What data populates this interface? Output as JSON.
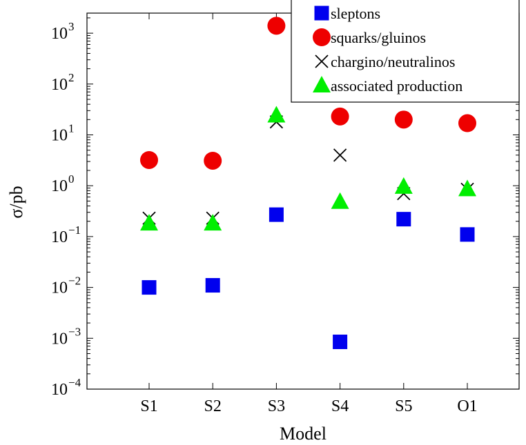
{
  "chart_data": {
    "type": "scatter",
    "title": "",
    "xlabel": "Model",
    "ylabel": "σ/pb",
    "yscale": "log",
    "ylim": [
      0.0001,
      2000
    ],
    "grid": false,
    "legend_position": "top-right",
    "categories": [
      "S1",
      "S2",
      "S3",
      "S4",
      "S5",
      "O1"
    ],
    "y_ticks": [
      {
        "value": 0.0001,
        "base": "10",
        "exp": "−4"
      },
      {
        "value": 0.001,
        "base": "10",
        "exp": "−3"
      },
      {
        "value": 0.01,
        "base": "10",
        "exp": "−2"
      },
      {
        "value": 0.1,
        "base": "10",
        "exp": "−1"
      },
      {
        "value": 1,
        "base": "10",
        "exp": "0"
      },
      {
        "value": 10,
        "base": "10",
        "exp": "1"
      },
      {
        "value": 100,
        "base": "10",
        "exp": "2"
      },
      {
        "value": 1000,
        "base": "10",
        "exp": "3"
      }
    ],
    "series": [
      {
        "name": "sleptons",
        "marker": "square",
        "color": "#0000ee",
        "values": [
          0.01,
          0.011,
          0.27,
          0.00085,
          0.22,
          0.11
        ]
      },
      {
        "name": "squarks/gluinos",
        "marker": "circle",
        "color": "#ee0000",
        "values": [
          3.2,
          3.1,
          1400,
          23,
          20,
          17
        ]
      },
      {
        "name": "chargino/neutralinos",
        "marker": "cross",
        "color": "#000000",
        "values": [
          0.23,
          0.23,
          18,
          4.0,
          0.7,
          0.85
        ]
      },
      {
        "name": "associated production",
        "marker": "triangle",
        "color": "#00ee00",
        "values": [
          0.18,
          0.18,
          24,
          0.48,
          0.95,
          0.85
        ]
      }
    ]
  }
}
